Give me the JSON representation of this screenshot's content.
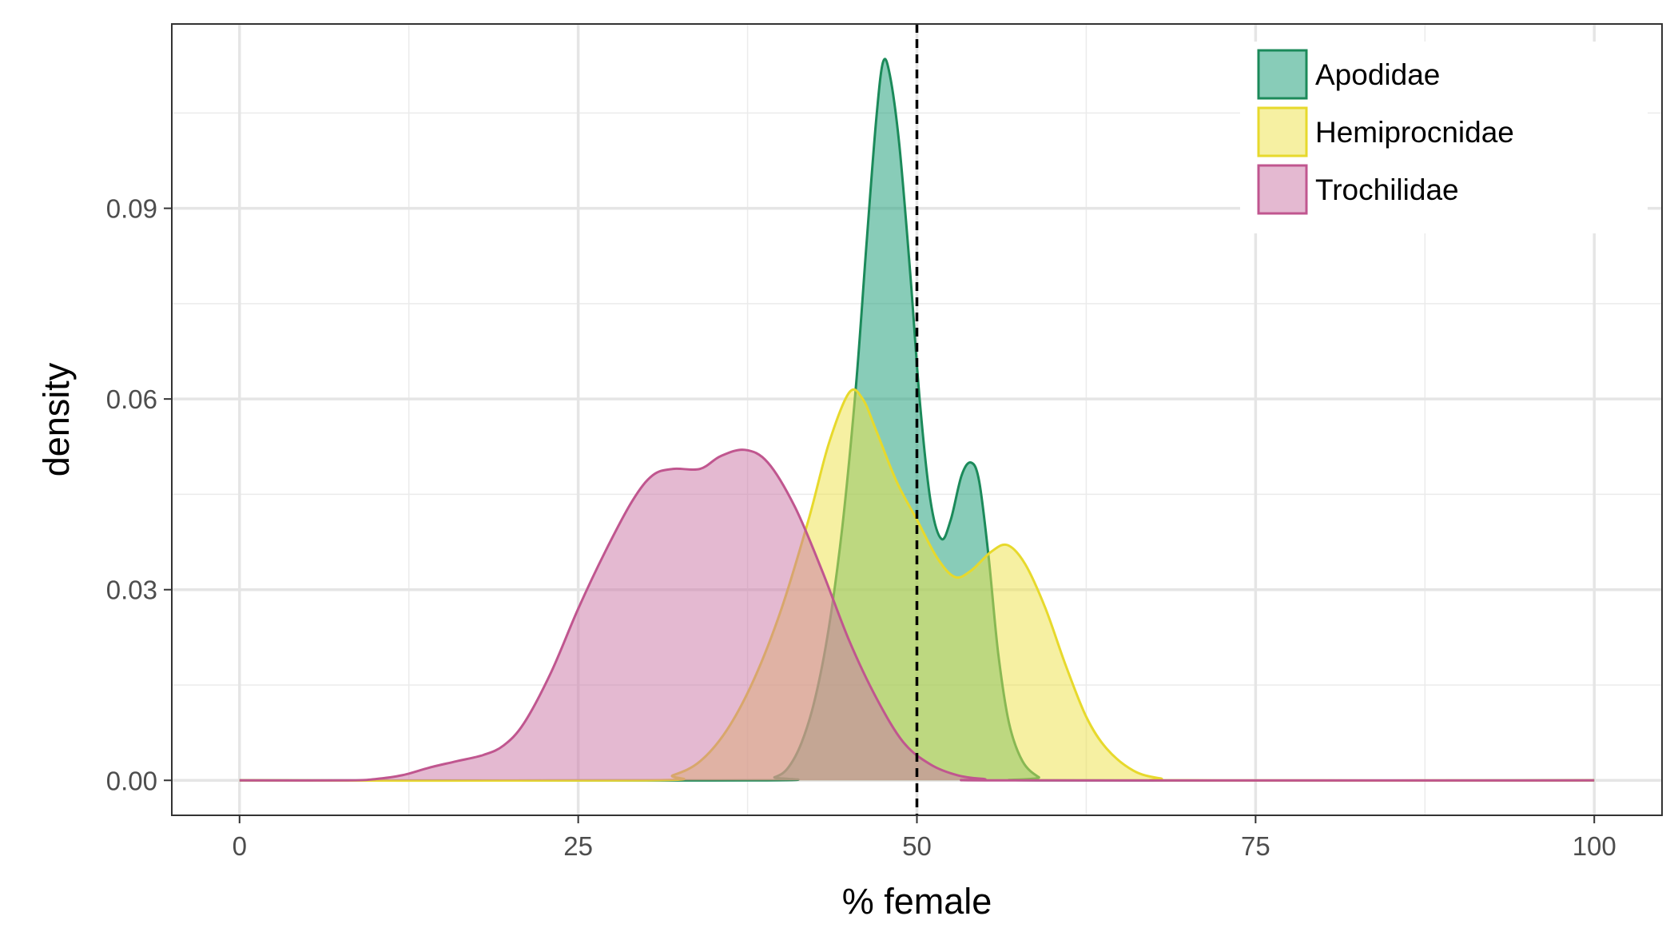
{
  "chart_data": {
    "type": "area",
    "xlabel": "% female",
    "ylabel": "density",
    "xlim": [
      -5,
      105
    ],
    "ylim": [
      -0.0055,
      0.119
    ],
    "x_ticks": [
      0,
      25,
      50,
      75,
      100
    ],
    "x_tick_labels": [
      "0",
      "25",
      "50",
      "75",
      "100"
    ],
    "y_ticks": [
      0.0,
      0.03,
      0.06,
      0.09
    ],
    "y_tick_labels": [
      "0.00",
      "0.03",
      "0.06",
      "0.09"
    ],
    "grid": true,
    "legend_position": "top-right",
    "reference_line": {
      "x": 50,
      "style": "dashed"
    },
    "series": [
      {
        "name": "Apodidae",
        "color": "#1b8a5a",
        "fill": "#1b9e77",
        "points": [
          [
            0,
            0
          ],
          [
            38,
            0
          ],
          [
            39.5,
            0.0005
          ],
          [
            40.5,
            0.002
          ],
          [
            41.5,
            0.006
          ],
          [
            42.5,
            0.013
          ],
          [
            43.5,
            0.024
          ],
          [
            44.5,
            0.04
          ],
          [
            45.5,
            0.062
          ],
          [
            46.3,
            0.085
          ],
          [
            47,
            0.104
          ],
          [
            47.5,
            0.113
          ],
          [
            48,
            0.111
          ],
          [
            48.7,
            0.1
          ],
          [
            49.5,
            0.08
          ],
          [
            50.2,
            0.06
          ],
          [
            51,
            0.044
          ],
          [
            51.8,
            0.038
          ],
          [
            52.5,
            0.041
          ],
          [
            53.3,
            0.048
          ],
          [
            54,
            0.05
          ],
          [
            54.6,
            0.047
          ],
          [
            55.3,
            0.035
          ],
          [
            56,
            0.02
          ],
          [
            56.8,
            0.009
          ],
          [
            57.8,
            0.003
          ],
          [
            59,
            0.0005
          ],
          [
            60,
            0
          ],
          [
            100,
            0
          ]
        ]
      },
      {
        "name": "Hemiprocnidae",
        "color": "#e7d92c",
        "fill": "#eee34c",
        "points": [
          [
            0,
            0
          ],
          [
            30,
            0
          ],
          [
            32,
            0.0008
          ],
          [
            34,
            0.003
          ],
          [
            36,
            0.008
          ],
          [
            38,
            0.016
          ],
          [
            40,
            0.027
          ],
          [
            42,
            0.041
          ],
          [
            43.5,
            0.053
          ],
          [
            45,
            0.061
          ],
          [
            46,
            0.06
          ],
          [
            47,
            0.055
          ],
          [
            48.5,
            0.047
          ],
          [
            50,
            0.041
          ],
          [
            51.5,
            0.035
          ],
          [
            52.8,
            0.032
          ],
          [
            54,
            0.033
          ],
          [
            55.5,
            0.036
          ],
          [
            56.7,
            0.037
          ],
          [
            58,
            0.034
          ],
          [
            59.5,
            0.027
          ],
          [
            61,
            0.018
          ],
          [
            62.5,
            0.01
          ],
          [
            64,
            0.005
          ],
          [
            66,
            0.0015
          ],
          [
            68,
            0.0003
          ],
          [
            70,
            0
          ],
          [
            100,
            0
          ]
        ]
      },
      {
        "name": "Trochilidae",
        "color": "#c0568f",
        "fill": "#cc79a7",
        "points": [
          [
            0,
            0
          ],
          [
            8,
            0
          ],
          [
            10,
            0.0002
          ],
          [
            12,
            0.0008
          ],
          [
            14,
            0.002
          ],
          [
            16,
            0.003
          ],
          [
            18,
            0.004
          ],
          [
            19.5,
            0.0055
          ],
          [
            21,
            0.009
          ],
          [
            23,
            0.017
          ],
          [
            25,
            0.027
          ],
          [
            27,
            0.036
          ],
          [
            29,
            0.044
          ],
          [
            30.5,
            0.048
          ],
          [
            32,
            0.049
          ],
          [
            34,
            0.049
          ],
          [
            35.5,
            0.051
          ],
          [
            37.3,
            0.052
          ],
          [
            39,
            0.05
          ],
          [
            41,
            0.043
          ],
          [
            43,
            0.033
          ],
          [
            45,
            0.022
          ],
          [
            47,
            0.013
          ],
          [
            49,
            0.006
          ],
          [
            51,
            0.0025
          ],
          [
            53,
            0.0008
          ],
          [
            55,
            0.0002
          ],
          [
            57,
            0
          ],
          [
            100,
            0
          ]
        ]
      }
    ]
  }
}
